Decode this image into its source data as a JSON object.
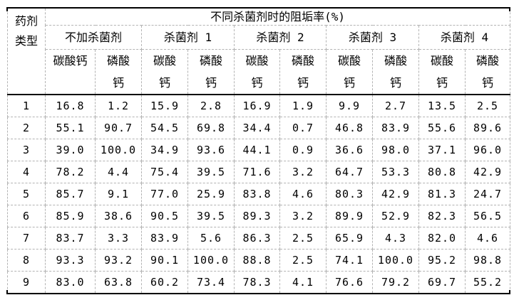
{
  "table": {
    "corner_header": "药剂\n类型",
    "title": "不同杀菌剂时的阻垢率(%)",
    "groups": [
      {
        "label": "不加杀菌剂",
        "sub": [
          "碳酸钙",
          "磷酸\n钙"
        ]
      },
      {
        "label": "杀菌剂 1",
        "sub": [
          "碳酸\n钙",
          "磷酸\n钙"
        ]
      },
      {
        "label": "杀菌剂 2",
        "sub": [
          "碳酸\n钙",
          "磷酸\n钙"
        ]
      },
      {
        "label": "杀菌剂 3",
        "sub": [
          "碳酸\n钙",
          "磷酸\n钙"
        ]
      },
      {
        "label": "杀菌剂 4",
        "sub": [
          "碳酸\n钙",
          "磷酸\n钙"
        ]
      }
    ],
    "rows": [
      {
        "id": "1",
        "values": [
          "16.8",
          "1.2",
          "15.9",
          "2.8",
          "16.9",
          "1.9",
          "9.9",
          "2.7",
          "13.5",
          "2.5"
        ]
      },
      {
        "id": "2",
        "values": [
          "55.1",
          "90.7",
          "54.5",
          "69.8",
          "34.4",
          "0.7",
          "46.8",
          "83.9",
          "55.6",
          "89.6"
        ]
      },
      {
        "id": "3",
        "values": [
          "39.0",
          "100.0",
          "34.9",
          "93.6",
          "44.1",
          "0.9",
          "36.6",
          "98.0",
          "37.1",
          "96.0"
        ]
      },
      {
        "id": "4",
        "values": [
          "78.2",
          "4.4",
          "75.4",
          "39.5",
          "71.6",
          "3.2",
          "64.7",
          "53.3",
          "80.8",
          "42.9"
        ]
      },
      {
        "id": "5",
        "values": [
          "85.7",
          "9.1",
          "77.0",
          "25.9",
          "83.8",
          "4.6",
          "80.3",
          "42.9",
          "81.3",
          "24.7"
        ]
      },
      {
        "id": "6",
        "values": [
          "85.9",
          "38.6",
          "90.5",
          "39.5",
          "89.3",
          "3.2",
          "89.9",
          "52.9",
          "82.3",
          "56.5"
        ]
      },
      {
        "id": "7",
        "values": [
          "83.7",
          "3.3",
          "83.9",
          "5.6",
          "86.3",
          "2.5",
          "65.9",
          "4.3",
          "82.0",
          "4.6"
        ]
      },
      {
        "id": "8",
        "values": [
          "93.3",
          "93.2",
          "90.1",
          "100.0",
          "88.8",
          "2.5",
          "74.1",
          "100.0",
          "95.2",
          "98.8"
        ]
      },
      {
        "id": "9",
        "values": [
          "83.0",
          "63.8",
          "60.2",
          "73.4",
          "78.3",
          "4.1",
          "76.6",
          "79.2",
          "69.7",
          "55.2"
        ]
      }
    ],
    "colors": {
      "rule": "#000000",
      "grid": "#b3b3b3",
      "background": "#ffffff"
    }
  }
}
